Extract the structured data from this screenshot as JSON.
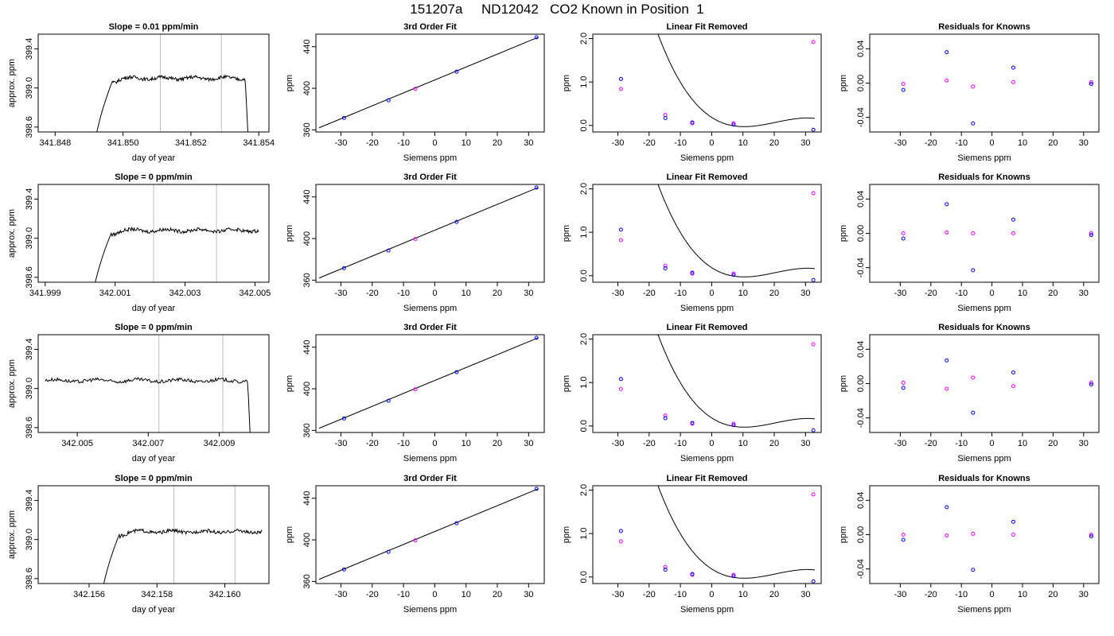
{
  "title": "151207a     ND12042   CO2 Known in Position  1",
  "colors": {
    "blue": "#0000ff",
    "magenta": "#ff00ff",
    "line": "#000000",
    "vline": "#bebebe"
  },
  "labels": {
    "trace_y": "approx. ppm",
    "trace_x": "day of year",
    "fit_title": "3rd Order Fit",
    "fit_y": "ppm",
    "lin_title": "Linear Fit Removed",
    "lin_y": "ppm",
    "res_title": "Residuals for Knowns",
    "res_y": "ppm",
    "siemens_x": "Siemens ppm"
  },
  "chart_data": [
    {
      "type": "line",
      "panel": "trace",
      "row": 1,
      "title": "Slope =  0.01  ppm/min",
      "xlabel": "day of year",
      "ylabel": "approx. ppm",
      "xlim": [
        341.8475,
        341.8543
      ],
      "ylim": [
        398.55,
        399.55
      ],
      "xticks": [
        "341.848",
        "341.850",
        "341.852",
        "341.854"
      ],
      "xtick_values": [
        341.848,
        341.85,
        341.852,
        341.854
      ],
      "yticks": [
        "398.6",
        "399.0",
        "399.4"
      ],
      "ytick_values": [
        398.6,
        399.0,
        399.4
      ],
      "vlines": [
        341.8511,
        341.8529
      ],
      "trace": {
        "x_start": 341.8491,
        "x_end": 341.8537,
        "plateau": 399.1,
        "rise_start": 398.2,
        "rise_end_x": 341.8497,
        "drop_x": 341.8536,
        "drop_to": 398.4
      }
    },
    {
      "type": "scatter",
      "panel": "fit",
      "row": 1,
      "title": "3rd Order Fit",
      "xlabel": "Siemens ppm",
      "ylabel": "ppm",
      "xlim": [
        -38,
        35
      ],
      "ylim": [
        358,
        452
      ],
      "xticks": [
        "-30",
        "-20",
        "-10",
        "0",
        "10",
        "20",
        "30"
      ],
      "xtick_values": [
        -30,
        -20,
        -10,
        0,
        10,
        20,
        30
      ],
      "yticks": [
        "360",
        "400",
        "440"
      ],
      "ytick_values": [
        360,
        400,
        440
      ],
      "line": {
        "x": [
          -37,
          33
        ],
        "y": [
          362,
          449
        ]
      },
      "points_blue": {
        "x": [
          -29,
          -14.8,
          7,
          32.5
        ],
        "y": [
          371.5,
          388.5,
          416,
          449
        ]
      },
      "points_magenta": {
        "x": [
          -6.2
        ],
        "y": [
          399.5
        ]
      }
    },
    {
      "type": "scatter",
      "panel": "lin",
      "row": 1,
      "title": "Linear Fit Removed",
      "xlabel": "Siemens ppm",
      "ylabel": "ppm",
      "xlim": [
        -38,
        35
      ],
      "ylim": [
        -0.15,
        2.1
      ],
      "xticks": [
        "-30",
        "-20",
        "-10",
        "0",
        "10",
        "20",
        "30"
      ],
      "xtick_values": [
        -30,
        -20,
        -10,
        0,
        10,
        20,
        30
      ],
      "yticks": [
        "0.0",
        "1.0",
        "2.0"
      ],
      "ytick_values": [
        0,
        1,
        2
      ],
      "curve_coeffs": [
        -4.85e-05,
        0.00298,
        -0.0462,
        0.185
      ],
      "points_blue": {
        "x": [
          -29,
          -14.8,
          -6.2,
          7,
          32.5
        ],
        "y": [
          1.07,
          0.17,
          0.07,
          0.02,
          -0.1
        ]
      },
      "points_magenta": {
        "x": [
          -29,
          -14.8,
          -6.2,
          7,
          32.5
        ],
        "y": [
          0.84,
          0.24,
          0.05,
          0.05,
          1.92
        ]
      }
    },
    {
      "type": "scatter",
      "panel": "res",
      "row": 1,
      "title": "Residuals for Knowns",
      "xlabel": "Siemens ppm",
      "ylabel": "ppm",
      "xlim": [
        -40,
        35
      ],
      "ylim": [
        -0.057,
        0.057
      ],
      "xticks": [
        "-30",
        "-20",
        "-10",
        "0",
        "10",
        "20",
        "30"
      ],
      "xtick_values": [
        -30,
        -20,
        -10,
        0,
        10,
        20,
        30
      ],
      "yticks": [
        "-0.04",
        "0.00",
        "0.04"
      ],
      "ytick_values": [
        -0.04,
        0,
        0.04
      ],
      "points_blue": {
        "x": [
          -29,
          -14.8,
          -6.2,
          7,
          32.5
        ],
        "y": [
          -0.008,
          0.036,
          -0.047,
          0.018,
          -0.001
        ]
      },
      "points_magenta": {
        "x": [
          -29,
          -14.8,
          -6.2,
          7,
          32.5
        ],
        "y": [
          -0.001,
          0.003,
          -0.004,
          0.001,
          0.001
        ]
      }
    },
    {
      "type": "line",
      "panel": "trace",
      "row": 2,
      "title": "Slope =  0  ppm/min",
      "xlabel": "day of year",
      "ylabel": "approx. ppm",
      "xlim": [
        341.9988,
        342.0054
      ],
      "ylim": [
        398.55,
        399.55
      ],
      "xticks": [
        "341.999",
        "342.001",
        "342.003",
        "342.005"
      ],
      "xtick_values": [
        341.999,
        342.001,
        342.003,
        342.005
      ],
      "yticks": [
        "398.6",
        "399.0",
        "399.4"
      ],
      "ytick_values": [
        398.6,
        399.0,
        399.4
      ],
      "vlines": [
        342.0021,
        342.0039
      ],
      "trace": {
        "x_start": 342.0003,
        "x_end": 342.0051,
        "plateau": 399.08,
        "rise_start": 398.2,
        "rise_end_x": 342.0009,
        "drop_x": null,
        "drop_to": null
      }
    },
    {
      "type": "scatter",
      "panel": "fit",
      "row": 2,
      "title": "3rd Order Fit",
      "xlabel": "Siemens ppm",
      "ylabel": "ppm",
      "xlim": [
        -38,
        35
      ],
      "ylim": [
        358,
        452
      ],
      "xticks": [
        "-30",
        "-20",
        "-10",
        "0",
        "10",
        "20",
        "30"
      ],
      "xtick_values": [
        -30,
        -20,
        -10,
        0,
        10,
        20,
        30
      ],
      "yticks": [
        "360",
        "400",
        "440"
      ],
      "ytick_values": [
        360,
        400,
        440
      ],
      "line": {
        "x": [
          -37,
          33
        ],
        "y": [
          362,
          449
        ]
      },
      "points_blue": {
        "x": [
          -29,
          -14.8,
          7,
          32.5
        ],
        "y": [
          371.5,
          388.5,
          416,
          449
        ]
      },
      "points_magenta": {
        "x": [
          -6.2
        ],
        "y": [
          399.5
        ]
      }
    },
    {
      "type": "scatter",
      "panel": "lin",
      "row": 2,
      "title": "Linear Fit Removed",
      "xlabel": "Siemens ppm",
      "ylabel": "ppm",
      "xlim": [
        -38,
        35
      ],
      "ylim": [
        -0.15,
        2.1
      ],
      "xticks": [
        "-30",
        "-20",
        "-10",
        "0",
        "10",
        "20",
        "30"
      ],
      "xtick_values": [
        -30,
        -20,
        -10,
        0,
        10,
        20,
        30
      ],
      "yticks": [
        "0.0",
        "1.0",
        "2.0"
      ],
      "ytick_values": [
        0,
        1,
        2
      ],
      "curve_coeffs": [
        -4.85e-05,
        0.00298,
        -0.0462,
        0.185
      ],
      "points_blue": {
        "x": [
          -29,
          -14.8,
          -6.2,
          7,
          32.5
        ],
        "y": [
          1.06,
          0.17,
          0.07,
          0.02,
          -0.1
        ]
      },
      "points_magenta": {
        "x": [
          -29,
          -14.8,
          -6.2,
          7,
          32.5
        ],
        "y": [
          0.82,
          0.23,
          0.05,
          0.05,
          1.9
        ]
      }
    },
    {
      "type": "scatter",
      "panel": "res",
      "row": 2,
      "title": "Residuals for Knowns",
      "xlabel": "Siemens ppm",
      "ylabel": "ppm",
      "xlim": [
        -40,
        35
      ],
      "ylim": [
        -0.057,
        0.057
      ],
      "xticks": [
        "-30",
        "-20",
        "-10",
        "0",
        "10",
        "20",
        "30"
      ],
      "xtick_values": [
        -30,
        -20,
        -10,
        0,
        10,
        20,
        30
      ],
      "yticks": [
        "-0.04",
        "0.00",
        "0.04"
      ],
      "ytick_values": [
        -0.04,
        0,
        0.04
      ],
      "points_blue": {
        "x": [
          -29,
          -14.8,
          -6.2,
          7,
          32.5
        ],
        "y": [
          -0.006,
          0.034,
          -0.043,
          0.016,
          -0.002
        ]
      },
      "points_magenta": {
        "x": [
          -29,
          -14.8,
          -6.2,
          7,
          32.5
        ],
        "y": [
          0,
          0.001,
          0,
          0,
          0
        ]
      }
    },
    {
      "type": "line",
      "panel": "trace",
      "row": 3,
      "title": "Slope =  0  ppm/min",
      "xlabel": "day of year",
      "ylabel": "approx. ppm",
      "xlim": [
        342.0039,
        342.0104
      ],
      "ylim": [
        398.55,
        399.55
      ],
      "xticks": [
        "342.005",
        "342.007",
        "342.009"
      ],
      "xtick_values": [
        342.005,
        342.007,
        342.009
      ],
      "yticks": [
        "398.6",
        "399.0",
        "399.4"
      ],
      "ytick_values": [
        398.6,
        399.0,
        399.4
      ],
      "vlines": [
        342.0073,
        342.0091
      ],
      "trace": {
        "x_start": 342.0041,
        "x_end": 342.0099,
        "plateau": 399.08,
        "rise_start": null,
        "rise_end_x": null,
        "drop_x": 342.0098,
        "drop_to": 398.3
      }
    },
    {
      "type": "scatter",
      "panel": "fit",
      "row": 3,
      "title": "3rd Order Fit",
      "xlabel": "Siemens ppm",
      "ylabel": "ppm",
      "xlim": [
        -38,
        35
      ],
      "ylim": [
        358,
        452
      ],
      "xticks": [
        "-30",
        "-20",
        "-10",
        "0",
        "10",
        "20",
        "30"
      ],
      "xtick_values": [
        -30,
        -20,
        -10,
        0,
        10,
        20,
        30
      ],
      "yticks": [
        "360",
        "400",
        "440"
      ],
      "ytick_values": [
        360,
        400,
        440
      ],
      "line": {
        "x": [
          -37,
          33
        ],
        "y": [
          362,
          449
        ]
      },
      "points_blue": {
        "x": [
          -29,
          -14.8,
          7,
          32.5
        ],
        "y": [
          371.5,
          388.5,
          416,
          449
        ]
      },
      "points_magenta": {
        "x": [
          -6.2
        ],
        "y": [
          399.5
        ]
      }
    },
    {
      "type": "scatter",
      "panel": "lin",
      "row": 3,
      "title": "Linear Fit Removed",
      "xlabel": "Siemens ppm",
      "ylabel": "ppm",
      "xlim": [
        -38,
        35
      ],
      "ylim": [
        -0.15,
        2.1
      ],
      "xticks": [
        "-30",
        "-20",
        "-10",
        "0",
        "10",
        "20",
        "30"
      ],
      "xtick_values": [
        -30,
        -20,
        -10,
        0,
        10,
        20,
        30
      ],
      "yticks": [
        "0.0",
        "1.0",
        "2.0"
      ],
      "ytick_values": [
        0,
        1,
        2
      ],
      "curve_coeffs": [
        -4.85e-05,
        0.00298,
        -0.0462,
        0.185
      ],
      "points_blue": {
        "x": [
          -29,
          -14.8,
          -6.2,
          7,
          32.5
        ],
        "y": [
          1.08,
          0.18,
          0.07,
          0.02,
          -0.1
        ]
      },
      "points_magenta": {
        "x": [
          -29,
          -14.8,
          -6.2,
          7,
          32.5
        ],
        "y": [
          0.85,
          0.24,
          0.05,
          0.05,
          1.88
        ]
      }
    },
    {
      "type": "scatter",
      "panel": "res",
      "row": 3,
      "title": "Residuals for Knowns",
      "xlabel": "Siemens ppm",
      "ylabel": "ppm",
      "xlim": [
        -40,
        35
      ],
      "ylim": [
        -0.057,
        0.057
      ],
      "xticks": [
        "-30",
        "-20",
        "-10",
        "0",
        "10",
        "20",
        "30"
      ],
      "xtick_values": [
        -30,
        -20,
        -10,
        0,
        10,
        20,
        30
      ],
      "yticks": [
        "-0.04",
        "0.00",
        "0.04"
      ],
      "ytick_values": [
        -0.04,
        0,
        0.04
      ],
      "points_blue": {
        "x": [
          -29,
          -14.8,
          -6.2,
          7,
          32.5
        ],
        "y": [
          -0.005,
          0.027,
          -0.034,
          0.013,
          -0.001
        ]
      },
      "points_magenta": {
        "x": [
          -29,
          -14.8,
          -6.2,
          7,
          32.5
        ],
        "y": [
          0.001,
          -0.006,
          0.007,
          -0.003,
          0.001
        ]
      }
    },
    {
      "type": "line",
      "panel": "trace",
      "row": 4,
      "title": "Slope =  0  ppm/min",
      "xlabel": "day of year",
      "ylabel": "approx. ppm",
      "xlim": [
        342.1545,
        342.1613
      ],
      "ylim": [
        398.55,
        399.55
      ],
      "xticks": [
        "342.156",
        "342.158",
        "342.160"
      ],
      "xtick_values": [
        342.156,
        342.158,
        342.16
      ],
      "yticks": [
        "398.6",
        "399.0",
        "399.4"
      ],
      "ytick_values": [
        398.6,
        399.0,
        399.4
      ],
      "vlines": [
        342.1585,
        342.1603
      ],
      "trace": {
        "x_start": 342.1563,
        "x_end": 342.1611,
        "plateau": 399.08,
        "rise_start": 398.2,
        "rise_end_x": 342.1569,
        "drop_x": null,
        "drop_to": null
      }
    },
    {
      "type": "scatter",
      "panel": "fit",
      "row": 4,
      "title": "3rd Order Fit",
      "xlabel": "Siemens ppm",
      "ylabel": "ppm",
      "xlim": [
        -38,
        35
      ],
      "ylim": [
        358,
        452
      ],
      "xticks": [
        "-30",
        "-20",
        "-10",
        "0",
        "10",
        "20",
        "30"
      ],
      "xtick_values": [
        -30,
        -20,
        -10,
        0,
        10,
        20,
        30
      ],
      "yticks": [
        "360",
        "400",
        "440"
      ],
      "ytick_values": [
        360,
        400,
        440
      ],
      "line": {
        "x": [
          -37,
          33
        ],
        "y": [
          362,
          449
        ]
      },
      "points_blue": {
        "x": [
          -29,
          -14.8,
          7,
          32.5
        ],
        "y": [
          371.5,
          388.5,
          416,
          449
        ]
      },
      "points_magenta": {
        "x": [
          -6.2
        ],
        "y": [
          399.5
        ]
      }
    },
    {
      "type": "scatter",
      "panel": "lin",
      "row": 4,
      "title": "Linear Fit Removed",
      "xlabel": "Siemens ppm",
      "ylabel": "ppm",
      "xlim": [
        -38,
        35
      ],
      "ylim": [
        -0.15,
        2.1
      ],
      "xticks": [
        "-30",
        "-20",
        "-10",
        "0",
        "10",
        "20",
        "30"
      ],
      "xtick_values": [
        -30,
        -20,
        -10,
        0,
        10,
        20,
        30
      ],
      "yticks": [
        "0.0",
        "1.0",
        "2.0"
      ],
      "ytick_values": [
        0,
        1,
        2
      ],
      "curve_coeffs": [
        -4.85e-05,
        0.00298,
        -0.0462,
        0.185
      ],
      "points_blue": {
        "x": [
          -29,
          -14.8,
          -6.2,
          7,
          32.5
        ],
        "y": [
          1.06,
          0.17,
          0.07,
          0.02,
          -0.1
        ]
      },
      "points_magenta": {
        "x": [
          -29,
          -14.8,
          -6.2,
          7,
          32.5
        ],
        "y": [
          0.82,
          0.23,
          0.05,
          0.05,
          1.9
        ]
      }
    },
    {
      "type": "scatter",
      "panel": "res",
      "row": 4,
      "title": "Residuals for Knowns",
      "xlabel": "Siemens ppm",
      "ylabel": "ppm",
      "xlim": [
        -40,
        35
      ],
      "ylim": [
        -0.057,
        0.057
      ],
      "xticks": [
        "-30",
        "-20",
        "-10",
        "0",
        "10",
        "20",
        "30"
      ],
      "xtick_values": [
        -30,
        -20,
        -10,
        0,
        10,
        20,
        30
      ],
      "yticks": [
        "-0.04",
        "0.00",
        "0.04"
      ],
      "ytick_values": [
        -0.04,
        0,
        0.04
      ],
      "points_blue": {
        "x": [
          -29,
          -14.8,
          -6.2,
          7,
          32.5
        ],
        "y": [
          -0.006,
          0.032,
          -0.041,
          0.015,
          -0.002
        ]
      },
      "points_magenta": {
        "x": [
          -29,
          -14.8,
          -6.2,
          7,
          32.5
        ],
        "y": [
          0,
          -0.001,
          0.001,
          0,
          0
        ]
      }
    }
  ]
}
